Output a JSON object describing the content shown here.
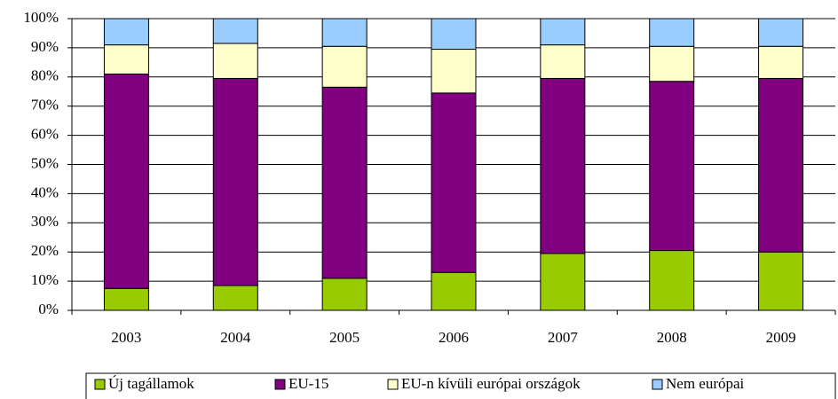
{
  "chart_data": {
    "type": "stacked_bar",
    "categories": [
      "2003",
      "2004",
      "2005",
      "2006",
      "2007",
      "2008",
      "2009"
    ],
    "series": [
      {
        "name": "Új tagállamok",
        "color": "#99cc00",
        "values": [
          7.5,
          8.5,
          11,
          13,
          19.5,
          20.5,
          20
        ]
      },
      {
        "name": "EU-15",
        "color": "#800080",
        "values": [
          73.5,
          71,
          65.5,
          61.5,
          60,
          58,
          59.5
        ]
      },
      {
        "name": "EU-n kívüli európai országok",
        "color": "#ffffcc",
        "values": [
          10,
          12,
          14,
          15,
          11.5,
          12,
          11
        ]
      },
      {
        "name": "Nem európai",
        "color": "#99ccff",
        "values": [
          9,
          8.5,
          9.5,
          10.5,
          9,
          9.5,
          9.5
        ]
      }
    ],
    "ylim": [
      0,
      100
    ],
    "yticks": [
      {
        "value": 0,
        "label": "0%"
      },
      {
        "value": 10,
        "label": "10%"
      },
      {
        "value": 20,
        "label": "20%"
      },
      {
        "value": 30,
        "label": "30%"
      },
      {
        "value": 40,
        "label": "40%"
      },
      {
        "value": 50,
        "label": "50%"
      },
      {
        "value": 60,
        "label": "60%"
      },
      {
        "value": 70,
        "label": "70%"
      },
      {
        "value": 80,
        "label": "80%"
      },
      {
        "value": 90,
        "label": "90%"
      },
      {
        "value": 100,
        "label": "100%"
      }
    ],
    "grid": true,
    "legend": "bottom"
  }
}
